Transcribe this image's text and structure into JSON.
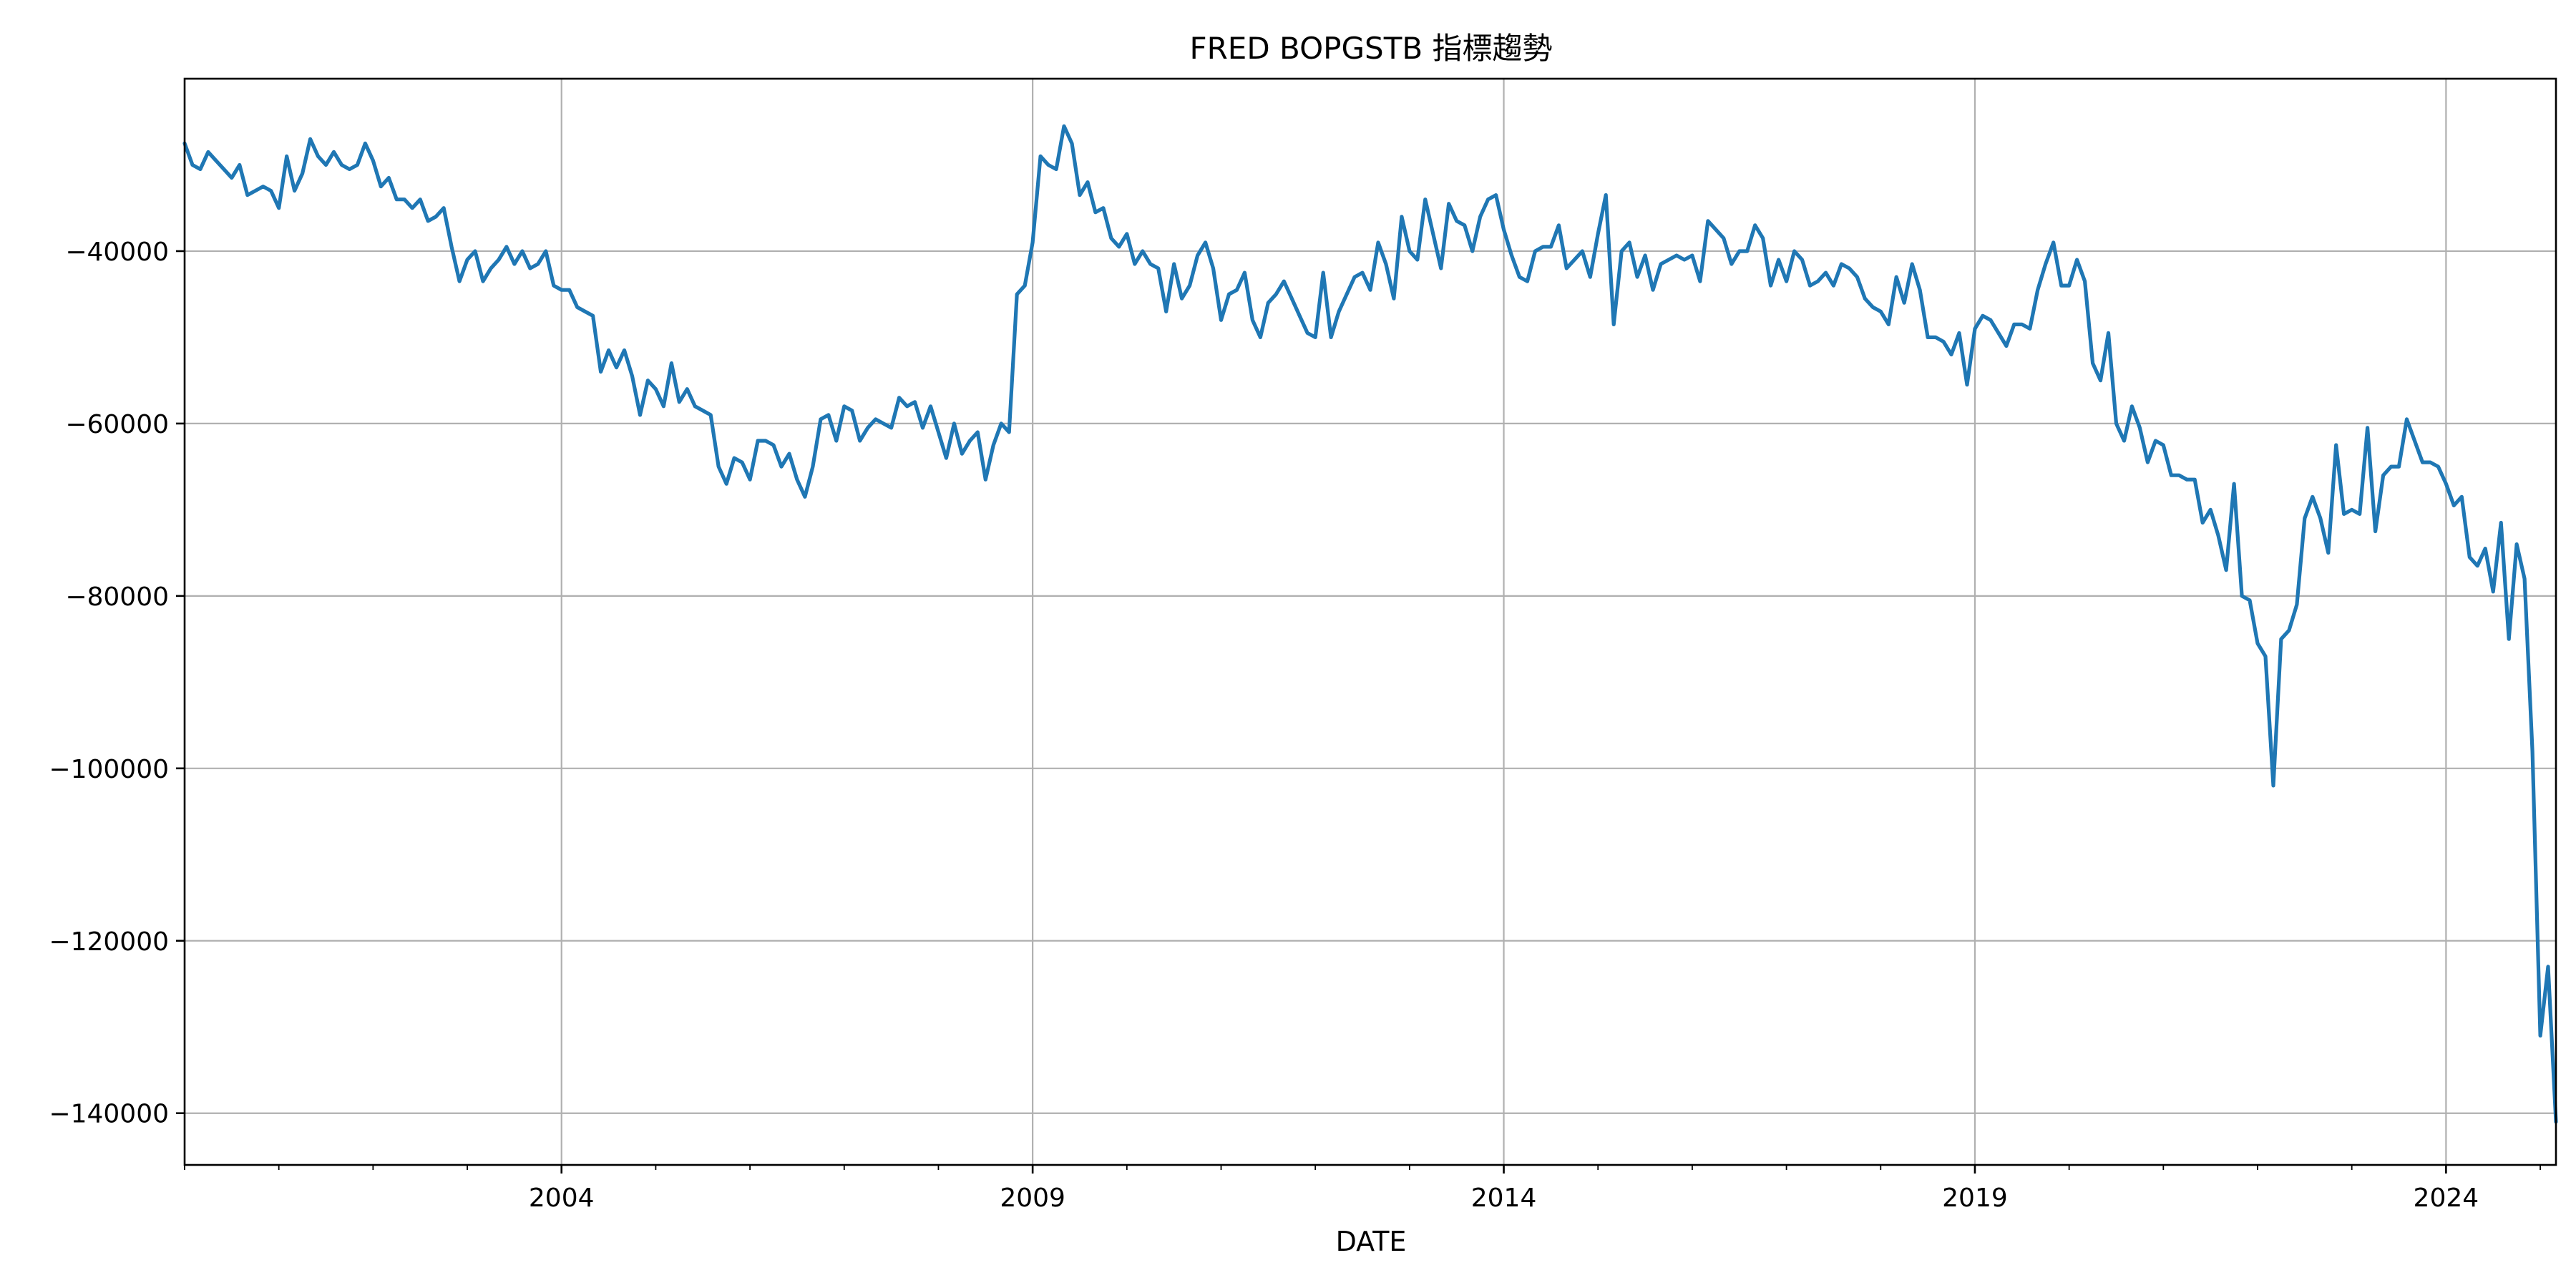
{
  "chart_data": {
    "type": "line",
    "title": "FRED BOPGSTB 指標趨勢",
    "xlabel": "DATE",
    "ylabel": "",
    "grid": true,
    "x_major_ticks": [
      "2004",
      "2009",
      "2014",
      "2019",
      "2024"
    ],
    "y_ticks": [
      -40000,
      -60000,
      -80000,
      -100000,
      -120000,
      -140000
    ],
    "y_tick_labels": [
      "−40000",
      "−60000",
      "−80000",
      "−100000",
      "−120000",
      "−140000"
    ],
    "x_range": [
      "2000-01",
      "2025-03"
    ],
    "ylim": [
      -146000,
      -20000
    ],
    "colors": {
      "series": "#1f77b4",
      "grid": "#b0b0b0"
    },
    "series": [
      {
        "start": "2000-01",
        "frequency": "monthly",
        "values": [
          -27500,
          -30000,
          -30500,
          -28500,
          -29500,
          -30500,
          -31500,
          -30000,
          -33500,
          -33000,
          -32500,
          -33000,
          -35000,
          -29000,
          -33000,
          -31000,
          -27000,
          -29000,
          -30000,
          -28500,
          -30000,
          -30500,
          -30000,
          -27500,
          -29500,
          -32500,
          -31500,
          -34000,
          -34000,
          -35000,
          -34000,
          -36500,
          -36000,
          -35000,
          -39500,
          -43500,
          -41000,
          -40000,
          -43500,
          -42000,
          -41000,
          -39500,
          -41500,
          -40000,
          -42000,
          -41500,
          -40000,
          -44000,
          -44500,
          -44500,
          -46500,
          -47000,
          -47500,
          -54000,
          -51500,
          -53500,
          -51500,
          -54500,
          -59000,
          -55000,
          -56000,
          -58000,
          -53000,
          -57500,
          -56000,
          -58000,
          -58500,
          -59000,
          -65000,
          -67000,
          -64000,
          -64500,
          -66500,
          -62000,
          -62000,
          -62500,
          -65000,
          -63500,
          -66500,
          -68500,
          -65000,
          -59500,
          -59000,
          -62000,
          -58000,
          -58500,
          -62000,
          -60500,
          -59500,
          -60000,
          -60500,
          -57000,
          -58000,
          -57500,
          -60500,
          -58000,
          -61000,
          -64000,
          -60000,
          -63500,
          -62000,
          -61000,
          -66500,
          -62500,
          -60000,
          -61000,
          -45000,
          -44000,
          -39000,
          -29000,
          -30000,
          -30500,
          -25500,
          -27500,
          -33500,
          -32000,
          -35500,
          -35000,
          -38500,
          -39500,
          -38000,
          -41500,
          -40000,
          -41500,
          -42000,
          -47000,
          -41500,
          -45500,
          -44000,
          -40500,
          -39000,
          -42000,
          -48000,
          -45000,
          -44500,
          -42500,
          -48000,
          -50000,
          -46000,
          -45000,
          -43500,
          -45500,
          -47500,
          -49500,
          -50000,
          -42500,
          -50000,
          -47000,
          -45000,
          -43000,
          -42500,
          -44500,
          -39000,
          -41500,
          -45500,
          -36000,
          -40000,
          -41000,
          -34000,
          -38000,
          -42000,
          -34500,
          -36500,
          -37000,
          -40000,
          -36000,
          -34000,
          -33500,
          -37500,
          -40500,
          -43000,
          -43500,
          -40000,
          -39500,
          -39500,
          -37000,
          -42000,
          -41000,
          -40000,
          -43000,
          -38000,
          -33500,
          -48500,
          -40000,
          -39000,
          -43000,
          -40500,
          -44500,
          -41500,
          -41000,
          -40500,
          -41000,
          -40500,
          -43500,
          -36500,
          -37500,
          -38500,
          -41500,
          -40000,
          -40000,
          -37000,
          -38500,
          -44000,
          -41000,
          -43500,
          -40000,
          -41000,
          -44000,
          -43500,
          -42500,
          -44000,
          -41500,
          -42000,
          -43000,
          -45500,
          -46500,
          -47000,
          -48500,
          -43000,
          -46000,
          -41500,
          -44500,
          -50000,
          -50000,
          -50500,
          -52000,
          -49500,
          -55500,
          -49000,
          -47500,
          -48000,
          -49500,
          -51000,
          -48500,
          -48500,
          -49000,
          -44500,
          -41500,
          -39000,
          -44000,
          -44000,
          -41000,
          -43500,
          -53000,
          -55000,
          -49500,
          -60000,
          -62000,
          -58000,
          -60500,
          -64500,
          -62000,
          -62500,
          -66000,
          -66000,
          -66500,
          -66500,
          -71500,
          -70000,
          -73000,
          -77000,
          -67000,
          -80000,
          -80500,
          -85500,
          -87000,
          -102000,
          -85000,
          -84000,
          -81000,
          -71000,
          -68500,
          -71000,
          -75000,
          -62500,
          -70500,
          -70000,
          -70500,
          -60500,
          -72500,
          -66000,
          -65000,
          -65000,
          -59500,
          -62000,
          -64500,
          -64500,
          -65000,
          -67000,
          -69500,
          -68500,
          -75500,
          -76500,
          -74500,
          -79500,
          -71500,
          -85000,
          -74000,
          -78000,
          -98000,
          -131000,
          -123000,
          -141000
        ]
      }
    ]
  }
}
